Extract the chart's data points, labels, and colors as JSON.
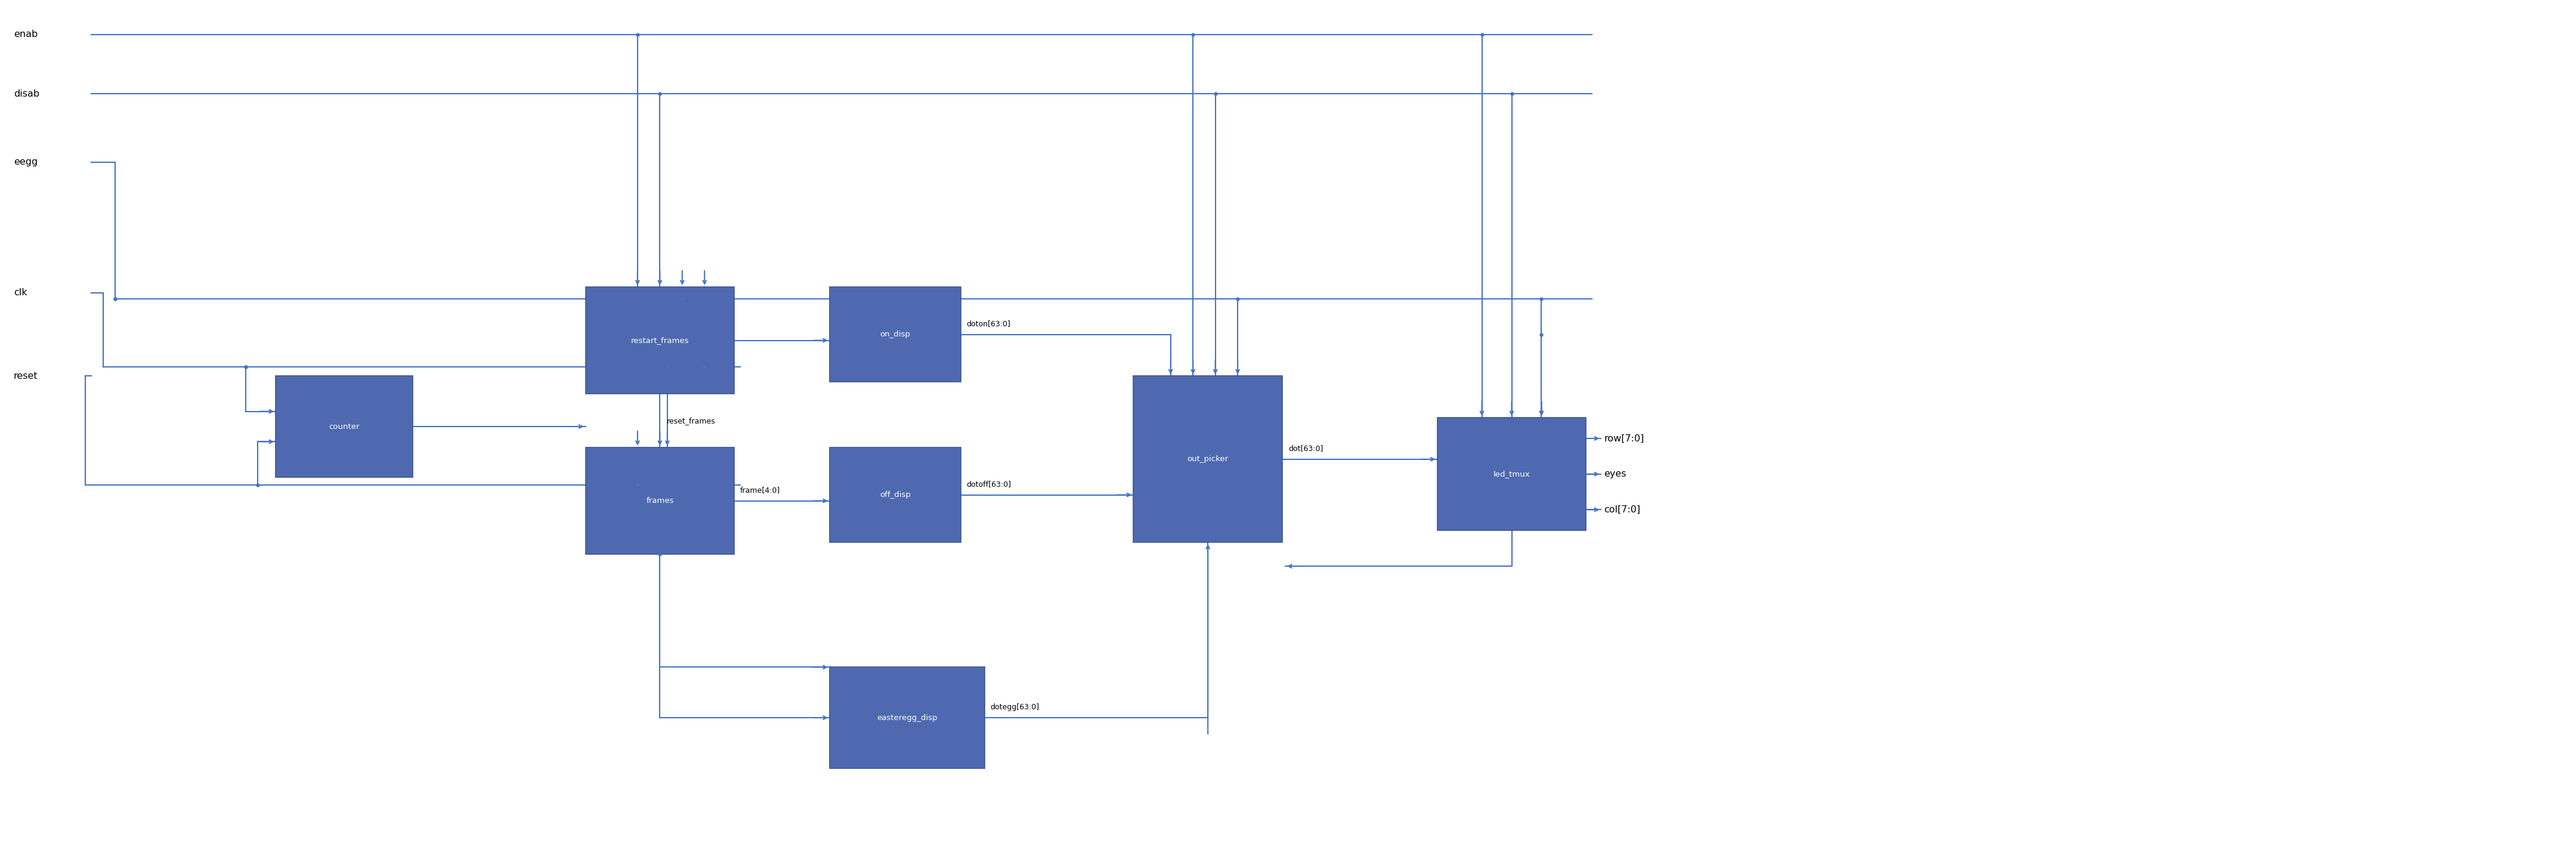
{
  "fig_width": 43.19,
  "fig_height": 14.45,
  "bg_color": "#ffffff",
  "line_color": "#4472c4",
  "box_fill": "#4F69B0",
  "box_edge_color": "#3D5490",
  "box_text_color": "white",
  "line_width": 1.5,
  "font_size": 9.5,
  "label_font_size": 11.5,
  "boxes": {
    "counter": [
      4.6,
      6.3,
      2.3,
      1.7
    ],
    "restart_frames": [
      9.8,
      4.8,
      2.5,
      1.8
    ],
    "frames": [
      9.8,
      7.5,
      2.5,
      1.8
    ],
    "on_disp": [
      13.9,
      4.8,
      2.2,
      1.6
    ],
    "off_disp": [
      13.9,
      7.5,
      2.2,
      1.6
    ],
    "easteregg_disp": [
      13.9,
      11.2,
      2.6,
      1.7
    ],
    "out_picker": [
      19.0,
      6.3,
      2.5,
      2.8
    ],
    "led_tmux": [
      24.1,
      7.0,
      2.5,
      1.9
    ]
  },
  "input_labels": {
    "enab": 0.55,
    "disab": 1.55,
    "eegg": 2.7,
    "clk": 4.9,
    "reset": 6.3
  },
  "output_labels": {
    "row[7:0]": 7.35,
    "eyes": 7.95,
    "col[7:0]": 8.55
  }
}
